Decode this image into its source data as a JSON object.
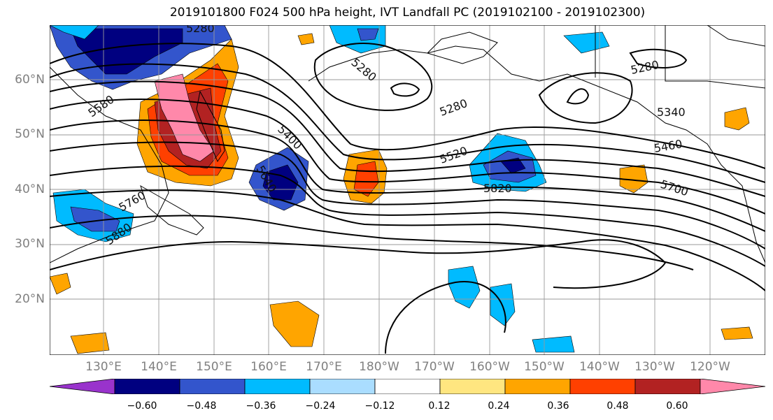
{
  "title": "2019101800 F024 500 hPa height, IVT Landfall PC (2019102100 - 2019102300)",
  "lat_ticks": [
    "60°N",
    "50°N",
    "40°N",
    "30°N",
    "20°N"
  ],
  "lon_ticks": [
    "130°E",
    "140°E",
    "150°E",
    "160°E",
    "170°E",
    "180°W",
    "170°W",
    "160°W",
    "150°W",
    "140°W",
    "130°W",
    "120°W"
  ],
  "colorbar": {
    "labels": [
      "−0.60",
      "−0.48",
      "−0.36",
      "−0.24",
      "−0.12",
      "0.12",
      "0.24",
      "0.36",
      "0.48",
      "0.60"
    ],
    "colors": [
      "#9933cc",
      "#000080",
      "#3355cc",
      "#00bbff",
      "#aaddff",
      "#ffffff",
      "#ffe680",
      "#ffa500",
      "#ff4000",
      "#b22222",
      "#ff88aa"
    ]
  },
  "contour_labels": [
    "5280",
    "5280",
    "5280",
    "5280",
    "5340",
    "5400",
    "5460",
    "5520",
    "5580",
    "5640",
    "5700",
    "5760",
    "5820",
    "5880"
  ]
}
